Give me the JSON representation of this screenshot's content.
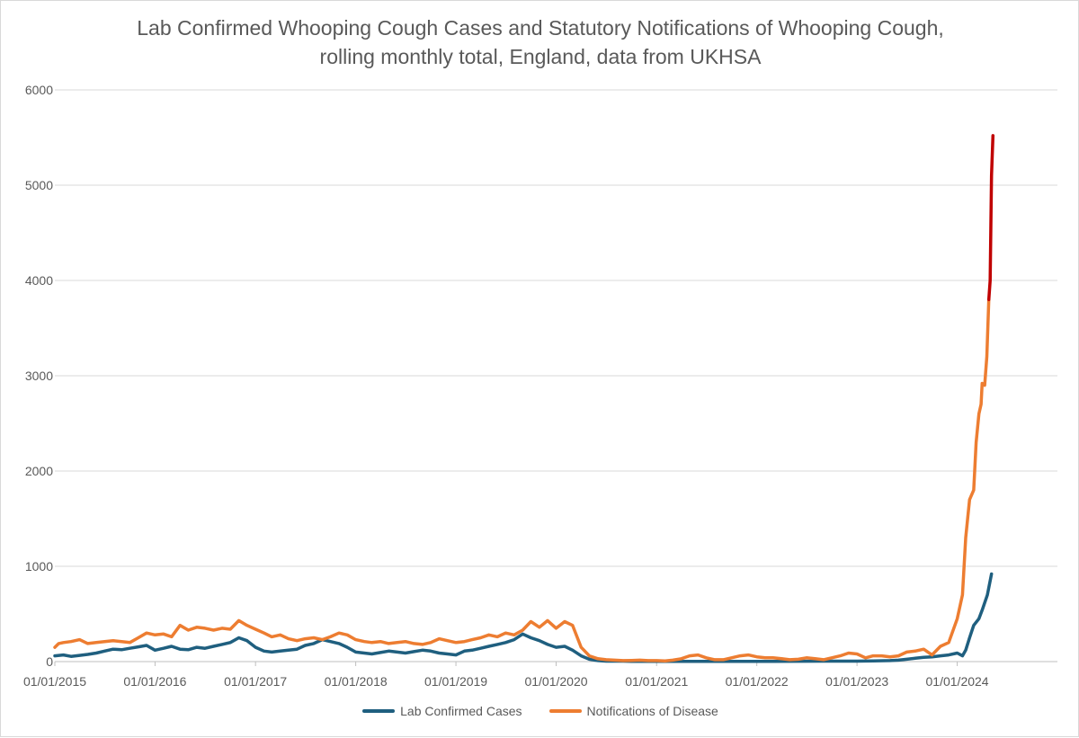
{
  "chart_data": {
    "type": "line",
    "title_line1": "Lab Confirmed Whooping Cough Cases and Statutory Notifications of Whooping Cough,",
    "title_line2": "rolling monthly total, England, data from UKHSA",
    "xlabel": "",
    "ylabel": "",
    "x_axis": {
      "type": "date",
      "range": [
        "2015-01-01",
        "2024-12-31"
      ],
      "tick_labels": [
        "01/01/2015",
        "01/01/2016",
        "01/01/2017",
        "01/01/2018",
        "01/01/2019",
        "01/01/2020",
        "01/01/2021",
        "01/01/2022",
        "01/01/2023",
        "01/01/2024"
      ],
      "tick_dates": [
        "2015-01-01",
        "2016-01-01",
        "2017-01-01",
        "2018-01-01",
        "2019-01-01",
        "2020-01-01",
        "2021-01-01",
        "2022-01-01",
        "2023-01-01",
        "2024-01-01"
      ]
    },
    "y_axis": {
      "range": [
        0,
        6000
      ],
      "ticks": [
        0,
        1000,
        2000,
        3000,
        4000,
        5000,
        6000
      ],
      "tick_labels": [
        "0",
        "1000",
        "2000",
        "3000",
        "4000",
        "5000",
        "6000"
      ],
      "gridlines": true
    },
    "legend_position": "bottom",
    "series": [
      {
        "name": "Lab Confirmed Cases",
        "color": "#1f5f7f",
        "points": [
          [
            "2015-01-01",
            60
          ],
          [
            "2015-02-01",
            70
          ],
          [
            "2015-03-01",
            55
          ],
          [
            "2015-04-01",
            65
          ],
          [
            "2015-05-01",
            75
          ],
          [
            "2015-06-01",
            90
          ],
          [
            "2015-07-01",
            110
          ],
          [
            "2015-08-01",
            130
          ],
          [
            "2015-09-01",
            125
          ],
          [
            "2015-10-01",
            140
          ],
          [
            "2015-11-01",
            155
          ],
          [
            "2015-12-01",
            170
          ],
          [
            "2016-01-01",
            120
          ],
          [
            "2016-02-01",
            140
          ],
          [
            "2016-03-01",
            160
          ],
          [
            "2016-04-01",
            130
          ],
          [
            "2016-05-01",
            125
          ],
          [
            "2016-06-01",
            150
          ],
          [
            "2016-07-01",
            140
          ],
          [
            "2016-08-01",
            160
          ],
          [
            "2016-09-01",
            180
          ],
          [
            "2016-10-01",
            200
          ],
          [
            "2016-11-01",
            250
          ],
          [
            "2016-12-01",
            220
          ],
          [
            "2017-01-01",
            150
          ],
          [
            "2017-02-01",
            110
          ],
          [
            "2017-03-01",
            100
          ],
          [
            "2017-04-01",
            110
          ],
          [
            "2017-05-01",
            120
          ],
          [
            "2017-06-01",
            130
          ],
          [
            "2017-07-01",
            170
          ],
          [
            "2017-08-01",
            190
          ],
          [
            "2017-09-01",
            230
          ],
          [
            "2017-10-01",
            210
          ],
          [
            "2017-11-01",
            190
          ],
          [
            "2017-12-01",
            150
          ],
          [
            "2018-01-01",
            100
          ],
          [
            "2018-02-01",
            90
          ],
          [
            "2018-03-01",
            80
          ],
          [
            "2018-04-01",
            95
          ],
          [
            "2018-05-01",
            110
          ],
          [
            "2018-06-01",
            100
          ],
          [
            "2018-07-01",
            90
          ],
          [
            "2018-08-01",
            105
          ],
          [
            "2018-09-01",
            120
          ],
          [
            "2018-10-01",
            110
          ],
          [
            "2018-11-01",
            90
          ],
          [
            "2018-12-01",
            80
          ],
          [
            "2019-01-01",
            70
          ],
          [
            "2019-02-01",
            110
          ],
          [
            "2019-03-01",
            120
          ],
          [
            "2019-04-01",
            140
          ],
          [
            "2019-05-01",
            160
          ],
          [
            "2019-06-01",
            180
          ],
          [
            "2019-07-01",
            200
          ],
          [
            "2019-08-01",
            230
          ],
          [
            "2019-09-01",
            290
          ],
          [
            "2019-10-01",
            250
          ],
          [
            "2019-11-01",
            220
          ],
          [
            "2019-12-01",
            180
          ],
          [
            "2020-01-01",
            150
          ],
          [
            "2020-02-01",
            160
          ],
          [
            "2020-03-01",
            120
          ],
          [
            "2020-04-01",
            60
          ],
          [
            "2020-05-01",
            25
          ],
          [
            "2020-06-01",
            10
          ],
          [
            "2020-07-01",
            5
          ],
          [
            "2020-08-01",
            5
          ],
          [
            "2020-09-01",
            5
          ],
          [
            "2020-10-01",
            3
          ],
          [
            "2020-11-01",
            3
          ],
          [
            "2020-12-01",
            3
          ],
          [
            "2021-01-01",
            2
          ],
          [
            "2021-03-01",
            2
          ],
          [
            "2021-06-01",
            3
          ],
          [
            "2021-09-01",
            3
          ],
          [
            "2021-12-01",
            3
          ],
          [
            "2022-03-01",
            3
          ],
          [
            "2022-06-01",
            4
          ],
          [
            "2022-09-01",
            5
          ],
          [
            "2022-12-01",
            5
          ],
          [
            "2023-01-01",
            5
          ],
          [
            "2023-03-01",
            8
          ],
          [
            "2023-05-01",
            10
          ],
          [
            "2023-06-01",
            15
          ],
          [
            "2023-07-01",
            25
          ],
          [
            "2023-08-01",
            35
          ],
          [
            "2023-09-01",
            45
          ],
          [
            "2023-10-01",
            50
          ],
          [
            "2023-11-01",
            60
          ],
          [
            "2023-12-01",
            70
          ],
          [
            "2024-01-01",
            90
          ],
          [
            "2024-01-20",
            60
          ],
          [
            "2024-02-01",
            120
          ],
          [
            "2024-02-15",
            250
          ],
          [
            "2024-03-01",
            380
          ],
          [
            "2024-03-20",
            450
          ],
          [
            "2024-04-01",
            540
          ],
          [
            "2024-04-20",
            700
          ],
          [
            "2024-05-05",
            920
          ]
        ]
      },
      {
        "name": "Notifications of Disease",
        "color": "#ed7d31",
        "highlight_color": "#c00000",
        "highlight_from": "2024-04-25",
        "points": [
          [
            "2015-01-01",
            150
          ],
          [
            "2015-01-15",
            190
          ],
          [
            "2015-02-01",
            200
          ],
          [
            "2015-03-01",
            210
          ],
          [
            "2015-04-01",
            230
          ],
          [
            "2015-05-01",
            190
          ],
          [
            "2015-06-01",
            200
          ],
          [
            "2015-07-01",
            210
          ],
          [
            "2015-08-01",
            220
          ],
          [
            "2015-09-01",
            210
          ],
          [
            "2015-10-01",
            200
          ],
          [
            "2015-11-01",
            250
          ],
          [
            "2015-12-01",
            300
          ],
          [
            "2016-01-01",
            280
          ],
          [
            "2016-02-01",
            290
          ],
          [
            "2016-03-01",
            260
          ],
          [
            "2016-04-01",
            380
          ],
          [
            "2016-05-01",
            330
          ],
          [
            "2016-06-01",
            360
          ],
          [
            "2016-07-01",
            350
          ],
          [
            "2016-08-01",
            330
          ],
          [
            "2016-09-01",
            350
          ],
          [
            "2016-10-01",
            340
          ],
          [
            "2016-11-01",
            430
          ],
          [
            "2016-12-01",
            380
          ],
          [
            "2017-01-01",
            340
          ],
          [
            "2017-02-01",
            300
          ],
          [
            "2017-03-01",
            260
          ],
          [
            "2017-04-01",
            280
          ],
          [
            "2017-05-01",
            240
          ],
          [
            "2017-06-01",
            220
          ],
          [
            "2017-07-01",
            240
          ],
          [
            "2017-08-01",
            250
          ],
          [
            "2017-09-01",
            230
          ],
          [
            "2017-10-01",
            260
          ],
          [
            "2017-11-01",
            300
          ],
          [
            "2017-12-01",
            280
          ],
          [
            "2018-01-01",
            230
          ],
          [
            "2018-02-01",
            210
          ],
          [
            "2018-03-01",
            200
          ],
          [
            "2018-04-01",
            210
          ],
          [
            "2018-05-01",
            190
          ],
          [
            "2018-06-01",
            200
          ],
          [
            "2018-07-01",
            210
          ],
          [
            "2018-08-01",
            190
          ],
          [
            "2018-09-01",
            180
          ],
          [
            "2018-10-01",
            200
          ],
          [
            "2018-11-01",
            240
          ],
          [
            "2018-12-01",
            220
          ],
          [
            "2019-01-01",
            200
          ],
          [
            "2019-02-01",
            210
          ],
          [
            "2019-03-01",
            230
          ],
          [
            "2019-04-01",
            250
          ],
          [
            "2019-05-01",
            280
          ],
          [
            "2019-06-01",
            260
          ],
          [
            "2019-07-01",
            300
          ],
          [
            "2019-08-01",
            280
          ],
          [
            "2019-09-01",
            330
          ],
          [
            "2019-10-01",
            420
          ],
          [
            "2019-11-01",
            360
          ],
          [
            "2019-12-01",
            430
          ],
          [
            "2020-01-01",
            350
          ],
          [
            "2020-02-01",
            420
          ],
          [
            "2020-03-01",
            380
          ],
          [
            "2020-04-01",
            150
          ],
          [
            "2020-05-01",
            60
          ],
          [
            "2020-06-01",
            30
          ],
          [
            "2020-07-01",
            20
          ],
          [
            "2020-08-01",
            15
          ],
          [
            "2020-09-01",
            10
          ],
          [
            "2020-10-01",
            12
          ],
          [
            "2020-11-01",
            15
          ],
          [
            "2020-12-01",
            10
          ],
          [
            "2021-01-01",
            10
          ],
          [
            "2021-02-01",
            8
          ],
          [
            "2021-03-01",
            15
          ],
          [
            "2021-04-01",
            30
          ],
          [
            "2021-05-01",
            60
          ],
          [
            "2021-06-01",
            70
          ],
          [
            "2021-07-01",
            40
          ],
          [
            "2021-08-01",
            20
          ],
          [
            "2021-09-01",
            20
          ],
          [
            "2021-10-01",
            40
          ],
          [
            "2021-11-01",
            60
          ],
          [
            "2021-12-01",
            70
          ],
          [
            "2022-01-01",
            50
          ],
          [
            "2022-02-01",
            40
          ],
          [
            "2022-03-01",
            40
          ],
          [
            "2022-04-01",
            30
          ],
          [
            "2022-05-01",
            20
          ],
          [
            "2022-06-01",
            25
          ],
          [
            "2022-07-01",
            40
          ],
          [
            "2022-08-01",
            30
          ],
          [
            "2022-09-01",
            20
          ],
          [
            "2022-10-01",
            40
          ],
          [
            "2022-11-01",
            60
          ],
          [
            "2022-12-01",
            90
          ],
          [
            "2023-01-01",
            80
          ],
          [
            "2023-02-01",
            40
          ],
          [
            "2023-03-01",
            60
          ],
          [
            "2023-04-01",
            60
          ],
          [
            "2023-05-01",
            50
          ],
          [
            "2023-06-01",
            60
          ],
          [
            "2023-07-01",
            100
          ],
          [
            "2023-08-01",
            110
          ],
          [
            "2023-09-01",
            130
          ],
          [
            "2023-10-01",
            70
          ],
          [
            "2023-11-01",
            160
          ],
          [
            "2023-12-01",
            200
          ],
          [
            "2024-01-01",
            450
          ],
          [
            "2024-01-20",
            700
          ],
          [
            "2024-02-01",
            1300
          ],
          [
            "2024-02-15",
            1700
          ],
          [
            "2024-03-01",
            1800
          ],
          [
            "2024-03-10",
            2300
          ],
          [
            "2024-03-20",
            2600
          ],
          [
            "2024-03-28",
            2700
          ],
          [
            "2024-04-01",
            2920
          ],
          [
            "2024-04-10",
            2900
          ],
          [
            "2024-04-18",
            3200
          ],
          [
            "2024-04-25",
            3800
          ],
          [
            "2024-04-30",
            4000
          ],
          [
            "2024-05-05",
            5100
          ],
          [
            "2024-05-10",
            5520
          ]
        ]
      }
    ]
  }
}
